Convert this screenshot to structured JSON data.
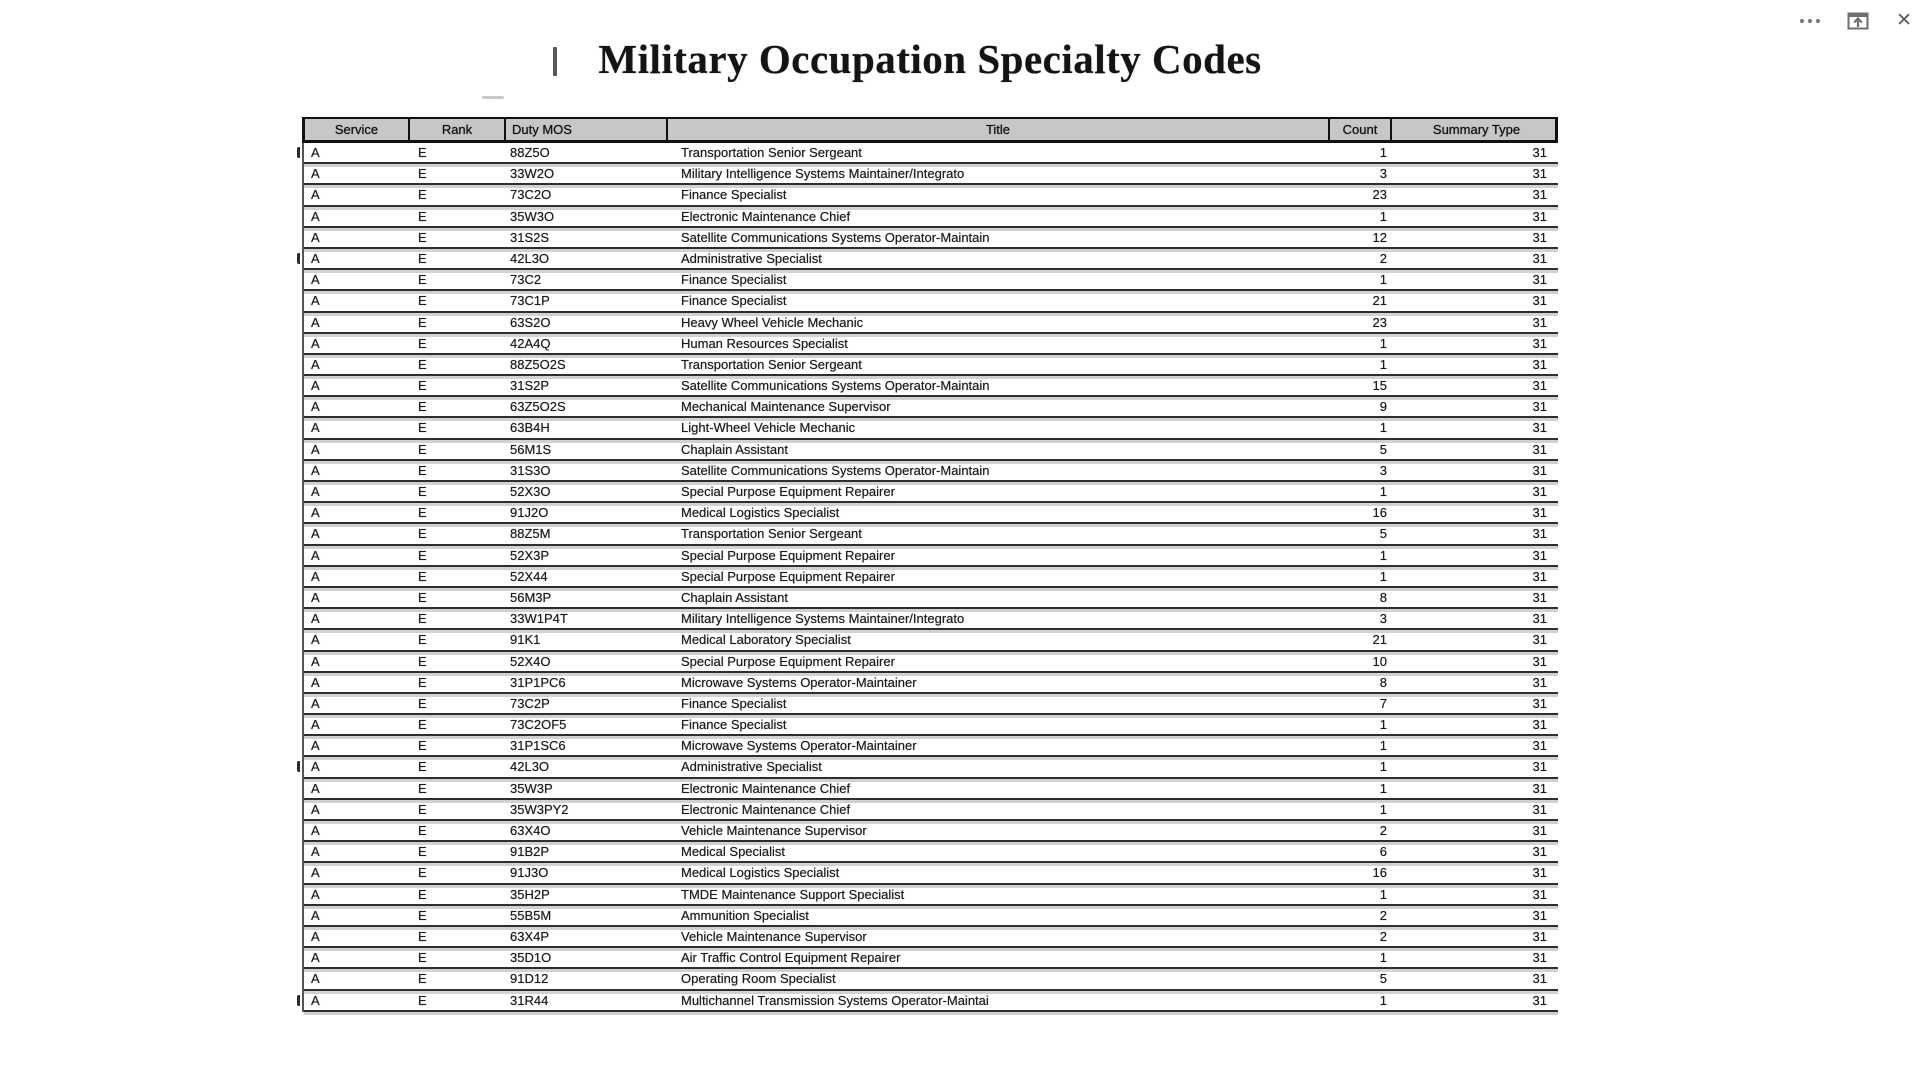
{
  "window": {
    "controls": {
      "more_icon_name": "more-options-icon",
      "popout_icon_name": "popout-icon",
      "close_icon_name": "close-icon",
      "close_glyph": "✕"
    }
  },
  "document": {
    "title": "Military Occupation Specialty Codes",
    "table": {
      "headers": [
        "Service",
        "Rank",
        "Duty MOS",
        "Title",
        "Count",
        "Summary Type"
      ],
      "rows": [
        [
          "A",
          "E",
          "88Z5O",
          "Transportation Senior Sergeant",
          "1",
          "31"
        ],
        [
          "A",
          "E",
          "33W2O",
          "Military Intelligence Systems Maintainer/Integrato",
          "3",
          "31"
        ],
        [
          "A",
          "E",
          "73C2O",
          "Finance Specialist",
          "23",
          "31"
        ],
        [
          "A",
          "E",
          "35W3O",
          "Electronic Maintenance Chief",
          "1",
          "31"
        ],
        [
          "A",
          "E",
          "31S2S",
          "Satellite Communications Systems Operator-Maintain",
          "12",
          "31"
        ],
        [
          "A",
          "E",
          "42L3O",
          "Administrative Specialist",
          "2",
          "31"
        ],
        [
          "A",
          "E",
          "73C2",
          "Finance Specialist",
          "1",
          "31"
        ],
        [
          "A",
          "E",
          "73C1P",
          "Finance Specialist",
          "21",
          "31"
        ],
        [
          "A",
          "E",
          "63S2O",
          "Heavy Wheel Vehicle Mechanic",
          "23",
          "31"
        ],
        [
          "A",
          "E",
          "42A4Q",
          "Human Resources Specialist",
          "1",
          "31"
        ],
        [
          "A",
          "E",
          "88Z5O2S",
          "Transportation Senior Sergeant",
          "1",
          "31"
        ],
        [
          "A",
          "E",
          "31S2P",
          "Satellite Communications Systems Operator-Maintain",
          "15",
          "31"
        ],
        [
          "A",
          "E",
          "63Z5O2S",
          "Mechanical Maintenance Supervisor",
          "9",
          "31"
        ],
        [
          "A",
          "E",
          "63B4H",
          "Light-Wheel Vehicle Mechanic",
          "1",
          "31"
        ],
        [
          "A",
          "E",
          "56M1S",
          "Chaplain Assistant",
          "5",
          "31"
        ],
        [
          "A",
          "E",
          "31S3O",
          "Satellite Communications Systems Operator-Maintain",
          "3",
          "31"
        ],
        [
          "A",
          "E",
          "52X3O",
          "Special Purpose Equipment Repairer",
          "1",
          "31"
        ],
        [
          "A",
          "E",
          "91J2O",
          "Medical Logistics Specialist",
          "16",
          "31"
        ],
        [
          "A",
          "E",
          "88Z5M",
          "Transportation Senior Sergeant",
          "5",
          "31"
        ],
        [
          "A",
          "E",
          "52X3P",
          "Special Purpose Equipment Repairer",
          "1",
          "31"
        ],
        [
          "A",
          "E",
          "52X44",
          "Special Purpose Equipment Repairer",
          "1",
          "31"
        ],
        [
          "A",
          "E",
          "56M3P",
          "Chaplain Assistant",
          "8",
          "31"
        ],
        [
          "A",
          "E",
          "33W1P4T",
          "Military Intelligence Systems Maintainer/Integrato",
          "3",
          "31"
        ],
        [
          "A",
          "E",
          "91K1",
          "Medical Laboratory Specialist",
          "21",
          "31"
        ],
        [
          "A",
          "E",
          "52X4O",
          "Special Purpose Equipment Repairer",
          "10",
          "31"
        ],
        [
          "A",
          "E",
          "31P1PC6",
          "Microwave Systems Operator-Maintainer",
          "8",
          "31"
        ],
        [
          "A",
          "E",
          "73C2P",
          "Finance Specialist",
          "7",
          "31"
        ],
        [
          "A",
          "E",
          "73C2OF5",
          "Finance Specialist",
          "1",
          "31"
        ],
        [
          "A",
          "E",
          "31P1SC6",
          "Microwave Systems Operator-Maintainer",
          "1",
          "31"
        ],
        [
          "A",
          "E",
          "42L3O",
          "Administrative Specialist",
          "1",
          "31"
        ],
        [
          "A",
          "E",
          "35W3P",
          "Electronic Maintenance Chief",
          "1",
          "31"
        ],
        [
          "A",
          "E",
          "35W3PY2",
          "Electronic Maintenance Chief",
          "1",
          "31"
        ],
        [
          "A",
          "E",
          "63X4O",
          "Vehicle Maintenance Supervisor",
          "2",
          "31"
        ],
        [
          "A",
          "E",
          "91B2P",
          "Medical Specialist",
          "6",
          "31"
        ],
        [
          "A",
          "E",
          "91J3O",
          "Medical Logistics Specialist",
          "16",
          "31"
        ],
        [
          "A",
          "E",
          "35H2P",
          "TMDE Maintenance Support Specialist",
          "1",
          "31"
        ],
        [
          "A",
          "E",
          "55B5M",
          "Ammunition Specialist",
          "2",
          "31"
        ],
        [
          "A",
          "E",
          "63X4P",
          "Vehicle Maintenance Supervisor",
          "2",
          "31"
        ],
        [
          "A",
          "E",
          "35D1O",
          "Air Traffic Control Equipment Repairer",
          "1",
          "31"
        ],
        [
          "A",
          "E",
          "91D12",
          "Operating Room Specialist",
          "5",
          "31"
        ],
        [
          "A",
          "E",
          "31R44",
          "Multichannel Transmission Systems Operator-Maintai",
          "1",
          "31"
        ]
      ]
    },
    "scan_artifacts": {
      "left_edge_fragment_rows": [
        0,
        5,
        29,
        40
      ]
    }
  }
}
